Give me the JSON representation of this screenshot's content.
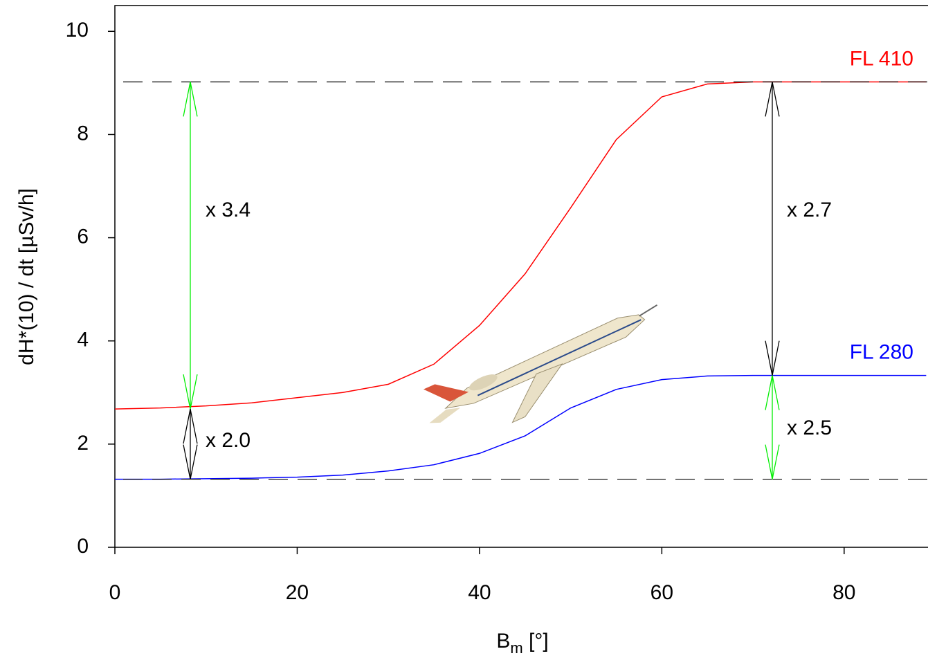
{
  "chart_data": {
    "type": "line",
    "x_label": {
      "base": "B",
      "sub": "m",
      "rest": " [°]"
    },
    "y_label": "dH*(10) / dt  [µSv/h]",
    "x": [
      0,
      5,
      10,
      15,
      20,
      25,
      30,
      35,
      40,
      45,
      50,
      55,
      60,
      65,
      70,
      75,
      80,
      85,
      89
    ],
    "series": [
      {
        "name": "FL 410",
        "color": "#ff0000",
        "values": [
          2.68,
          2.7,
          2.74,
          2.8,
          2.9,
          3.0,
          3.16,
          3.55,
          4.3,
          5.3,
          6.58,
          7.9,
          8.73,
          8.98,
          9.02,
          9.02,
          9.02,
          9.02,
          9.02
        ]
      },
      {
        "name": "FL 280",
        "color": "#0000ff",
        "values": [
          1.32,
          1.32,
          1.33,
          1.34,
          1.36,
          1.4,
          1.48,
          1.6,
          1.82,
          2.16,
          2.7,
          3.06,
          3.25,
          3.32,
          3.33,
          3.33,
          3.33,
          3.33,
          3.33
        ]
      }
    ],
    "annotations": [
      {
        "text": "x 3.4",
        "color": "#00ee00"
      },
      {
        "text": "x 2.0",
        "color": "#000000"
      },
      {
        "text": "x 2.7",
        "color": "#000000"
      },
      {
        "text": "x 2.5",
        "color": "#00ee00"
      }
    ],
    "xlim": [
      0,
      89.2
    ],
    "ylim": [
      0,
      10.5
    ],
    "xticks": [
      0,
      20,
      40,
      60,
      80
    ],
    "yticks": [
      0,
      2,
      4,
      6,
      8,
      10
    ]
  }
}
